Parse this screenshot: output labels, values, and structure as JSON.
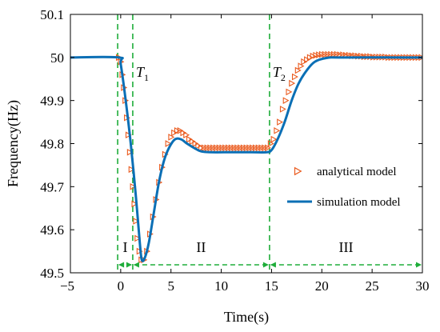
{
  "chart_data": {
    "type": "line",
    "title": "",
    "xlabel": "Time(s)",
    "ylabel": "Frequency(Hz)",
    "xlim": [
      -5,
      30
    ],
    "ylim": [
      49.5,
      50.1
    ],
    "x_ticks": [
      "-5",
      "0",
      "5",
      "10",
      "15",
      "20",
      "25",
      "30"
    ],
    "y_ticks": [
      "49.5",
      "49.6",
      "49.7",
      "49.8",
      "49.9",
      "50",
      "50.1"
    ],
    "grid": false,
    "legend_position": "center-right",
    "colors": {
      "analytical": "#ea5b1f",
      "simulation": "#0b6fb5",
      "markers": "#1fad3a"
    },
    "series": [
      {
        "name": "simulation model",
        "style": "solid-line",
        "points": [
          [
            -5,
            50.0
          ],
          [
            -0.2,
            50.0
          ],
          [
            0,
            49.985
          ],
          [
            0.5,
            49.9
          ],
          [
            1.0,
            49.8
          ],
          [
            1.5,
            49.68
          ],
          [
            1.9,
            49.57
          ],
          [
            2.1,
            49.53
          ],
          [
            2.4,
            49.535
          ],
          [
            2.8,
            49.57
          ],
          [
            3.3,
            49.64
          ],
          [
            3.8,
            49.71
          ],
          [
            4.3,
            49.76
          ],
          [
            4.8,
            49.79
          ],
          [
            5.4,
            49.81
          ],
          [
            6.0,
            49.81
          ],
          [
            6.6,
            49.8
          ],
          [
            7.3,
            49.79
          ],
          [
            8.0,
            49.782
          ],
          [
            9.0,
            49.78
          ],
          [
            11.0,
            49.78
          ],
          [
            13.0,
            49.78
          ],
          [
            14.5,
            49.78
          ],
          [
            15.0,
            49.785
          ],
          [
            15.6,
            49.81
          ],
          [
            16.3,
            49.85
          ],
          [
            17.0,
            49.9
          ],
          [
            17.7,
            49.94
          ],
          [
            18.5,
            49.97
          ],
          [
            19.3,
            49.99
          ],
          [
            20.5,
            49.999
          ],
          [
            22.0,
            50.0
          ],
          [
            30,
            50.0
          ]
        ]
      },
      {
        "name": "analytical model",
        "style": "triangle-markers",
        "points": [
          [
            -0.2,
            50.0
          ],
          [
            0,
            49.99
          ],
          [
            0.15,
            49.96
          ],
          [
            0.3,
            49.93
          ],
          [
            0.45,
            49.9
          ],
          [
            0.6,
            49.86
          ],
          [
            0.75,
            49.82
          ],
          [
            0.9,
            49.78
          ],
          [
            1.05,
            49.74
          ],
          [
            1.2,
            49.7
          ],
          [
            1.35,
            49.66
          ],
          [
            1.5,
            49.62
          ],
          [
            1.65,
            49.58
          ],
          [
            1.85,
            49.55
          ],
          [
            2.05,
            49.53
          ],
          [
            2.3,
            49.53
          ],
          [
            2.6,
            49.55
          ],
          [
            2.9,
            49.59
          ],
          [
            3.2,
            49.63
          ],
          [
            3.5,
            49.67
          ],
          [
            3.8,
            49.71
          ],
          [
            4.1,
            49.745
          ],
          [
            4.4,
            49.775
          ],
          [
            4.7,
            49.8
          ],
          [
            5.0,
            49.815
          ],
          [
            5.3,
            49.825
          ],
          [
            5.6,
            49.83
          ],
          [
            5.9,
            49.83
          ],
          [
            6.2,
            49.825
          ],
          [
            6.5,
            49.82
          ],
          [
            6.8,
            49.81
          ],
          [
            7.1,
            49.805
          ],
          [
            7.4,
            49.8
          ],
          [
            7.7,
            49.795
          ],
          [
            8.0,
            49.79
          ],
          [
            8.3,
            49.79
          ],
          [
            8.6,
            49.79
          ],
          [
            8.9,
            49.79
          ],
          [
            9.2,
            49.79
          ],
          [
            9.5,
            49.79
          ],
          [
            9.8,
            49.79
          ],
          [
            10.1,
            49.79
          ],
          [
            10.4,
            49.79
          ],
          [
            10.7,
            49.79
          ],
          [
            11.0,
            49.79
          ],
          [
            11.3,
            49.79
          ],
          [
            11.6,
            49.79
          ],
          [
            11.9,
            49.79
          ],
          [
            12.2,
            49.79
          ],
          [
            12.5,
            49.79
          ],
          [
            12.8,
            49.79
          ],
          [
            13.1,
            49.79
          ],
          [
            13.4,
            49.79
          ],
          [
            13.7,
            49.79
          ],
          [
            14.0,
            49.79
          ],
          [
            14.3,
            49.79
          ],
          [
            14.6,
            49.79
          ],
          [
            14.9,
            49.8
          ],
          [
            15.2,
            49.81
          ],
          [
            15.5,
            49.83
          ],
          [
            15.8,
            49.85
          ],
          [
            16.1,
            49.88
          ],
          [
            16.4,
            49.9
          ],
          [
            16.7,
            49.92
          ],
          [
            17.0,
            49.94
          ],
          [
            17.3,
            49.955
          ],
          [
            17.6,
            49.97
          ],
          [
            17.9,
            49.98
          ],
          [
            18.2,
            49.99
          ],
          [
            18.5,
            49.995
          ],
          [
            18.8,
            50.0
          ],
          [
            19.1,
            50.003
          ],
          [
            19.4,
            50.005
          ],
          [
            19.7,
            50.006
          ],
          [
            20.0,
            50.007
          ],
          [
            20.3,
            50.007
          ],
          [
            20.6,
            50.007
          ],
          [
            20.9,
            50.007
          ],
          [
            21.2,
            50.007
          ],
          [
            21.5,
            50.007
          ],
          [
            21.8,
            50.006
          ],
          [
            22.1,
            50.006
          ],
          [
            22.4,
            50.005
          ],
          [
            22.7,
            50.005
          ],
          [
            23.0,
            50.004
          ],
          [
            23.3,
            50.004
          ],
          [
            23.6,
            50.003
          ],
          [
            23.9,
            50.003
          ],
          [
            24.2,
            50.002
          ],
          [
            24.5,
            50.002
          ],
          [
            24.8,
            50.002
          ],
          [
            25.1,
            50.001
          ],
          [
            25.4,
            50.001
          ],
          [
            25.7,
            50.001
          ],
          [
            26.0,
            50.001
          ],
          [
            26.3,
            50.001
          ],
          [
            26.6,
            50.0
          ],
          [
            26.9,
            50.0
          ],
          [
            27.2,
            50.0
          ],
          [
            27.5,
            50.0
          ],
          [
            27.8,
            50.0
          ],
          [
            28.1,
            50.0
          ],
          [
            28.4,
            50.0
          ],
          [
            28.7,
            50.0
          ],
          [
            29.0,
            50.0
          ],
          [
            29.3,
            50.0
          ],
          [
            29.6,
            50.0
          ],
          [
            29.9,
            50.0
          ]
        ]
      }
    ],
    "vertical_markers": [
      {
        "x": -0.3,
        "label": ""
      },
      {
        "x": 1.2,
        "label": "T1"
      },
      {
        "x": 14.8,
        "label": "T2"
      }
    ],
    "regions": [
      {
        "label": "I",
        "x_from": -0.3,
        "x_to": 1.2
      },
      {
        "label": "II",
        "x_from": 1.2,
        "x_to": 14.8
      },
      {
        "label": "III",
        "x_from": 14.8,
        "x_to": 30
      }
    ]
  }
}
